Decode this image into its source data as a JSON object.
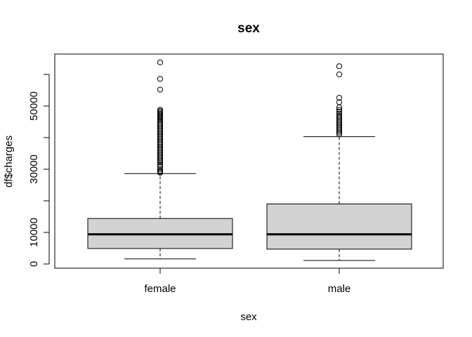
{
  "chart_data": {
    "type": "boxplot",
    "title": "sex",
    "xlabel": "sex",
    "ylabel": "df$charges",
    "categories": [
      "female",
      "male"
    ],
    "yticks": [
      0,
      10000,
      30000,
      50000
    ],
    "ylim": [
      0,
      64000
    ],
    "grid": false,
    "box_fill": "#d3d3d3",
    "series": [
      {
        "name": "female",
        "whisker_low": 1600,
        "q1": 4900,
        "median": 9400,
        "q3": 14400,
        "whisker_high": 28600,
        "outliers": [
          63800,
          58600,
          55200,
          48800,
          48400,
          48000,
          47600,
          47200,
          46800,
          46400,
          46000,
          45600,
          45100,
          44600,
          44100,
          43600,
          43100,
          42600,
          42100,
          41600,
          41100,
          40600,
          40100,
          39600,
          39100,
          38600,
          38100,
          37600,
          37100,
          36600,
          36100,
          35600,
          35100,
          34600,
          34100,
          33600,
          33100,
          32600,
          32100,
          31400,
          30800,
          30000,
          29500,
          29200,
          28900
        ]
      },
      {
        "name": "male",
        "whisker_low": 1100,
        "q1": 4700,
        "median": 9400,
        "q3": 19000,
        "whisker_high": 40300,
        "outliers": [
          62600,
          60000,
          52600,
          51200,
          49600,
          48800,
          48200,
          47600,
          47000,
          46500,
          46000,
          45500,
          45000,
          44500,
          44000,
          43500,
          43000,
          42500,
          42000,
          41500,
          41000
        ]
      }
    ]
  }
}
